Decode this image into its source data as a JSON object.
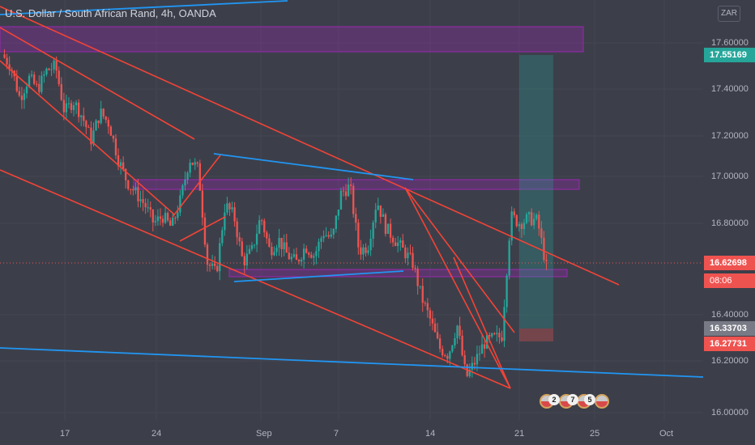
{
  "header": {
    "title": "U.S. Dollar / South African Rand, 4h, OANDA",
    "currency": "ZAR"
  },
  "price_axis": {
    "ticks": [
      "17.60000",
      "17.40000",
      "17.20000",
      "17.00000",
      "16.80000",
      "16.40000",
      "16.20000",
      "16.00000"
    ],
    "tags": [
      {
        "label": "17.55169",
        "color": "#26a69a"
      },
      {
        "label": "16.62698",
        "color": "#ef5350"
      },
      {
        "label": "08:06",
        "color": "#ef5350"
      },
      {
        "label": "16.33703",
        "color": "#787b86"
      },
      {
        "label": "16.27731",
        "color": "#ef5350"
      }
    ]
  },
  "time_axis": {
    "labels": [
      "17",
      "24",
      "Sep",
      "7",
      "14",
      "21",
      "25",
      "Oct"
    ]
  },
  "events": {
    "counts": [
      "2",
      "7",
      "5"
    ]
  },
  "chart_data": {
    "type": "candlestick",
    "symbol": "USDZAR",
    "interval": "4h",
    "ylim": [
      15.95,
      17.75
    ],
    "colors": {
      "up": "#26a69a",
      "down": "#ef5350",
      "zone": "#9c27b0",
      "trend_red": "#f44336",
      "trend_blue": "#2196f3",
      "profit": "#26a69a",
      "loss": "#ef5350"
    },
    "price_path": [
      17.55,
      17.5,
      17.36,
      17.45,
      17.4,
      17.48,
      17.5,
      17.3,
      17.35,
      17.28,
      17.18,
      17.3,
      17.25,
      17.1,
      17.0,
      16.95,
      16.9,
      16.82,
      16.85,
      16.8,
      16.92,
      17.1,
      17.05,
      16.65,
      16.6,
      16.9,
      16.85,
      16.65,
      16.7,
      16.85,
      16.7,
      16.75,
      16.68,
      16.65,
      16.72,
      16.68,
      16.78,
      16.75,
      16.95,
      16.98,
      16.7,
      16.72,
      16.92,
      16.8,
      16.75,
      16.7,
      16.65,
      16.5,
      16.4,
      16.28,
      16.25,
      16.38,
      16.15,
      16.22,
      16.3,
      16.32,
      16.33,
      16.85,
      16.82,
      16.84,
      16.83,
      16.63
    ],
    "current_price": 16.62698,
    "countdown": "08:06"
  }
}
